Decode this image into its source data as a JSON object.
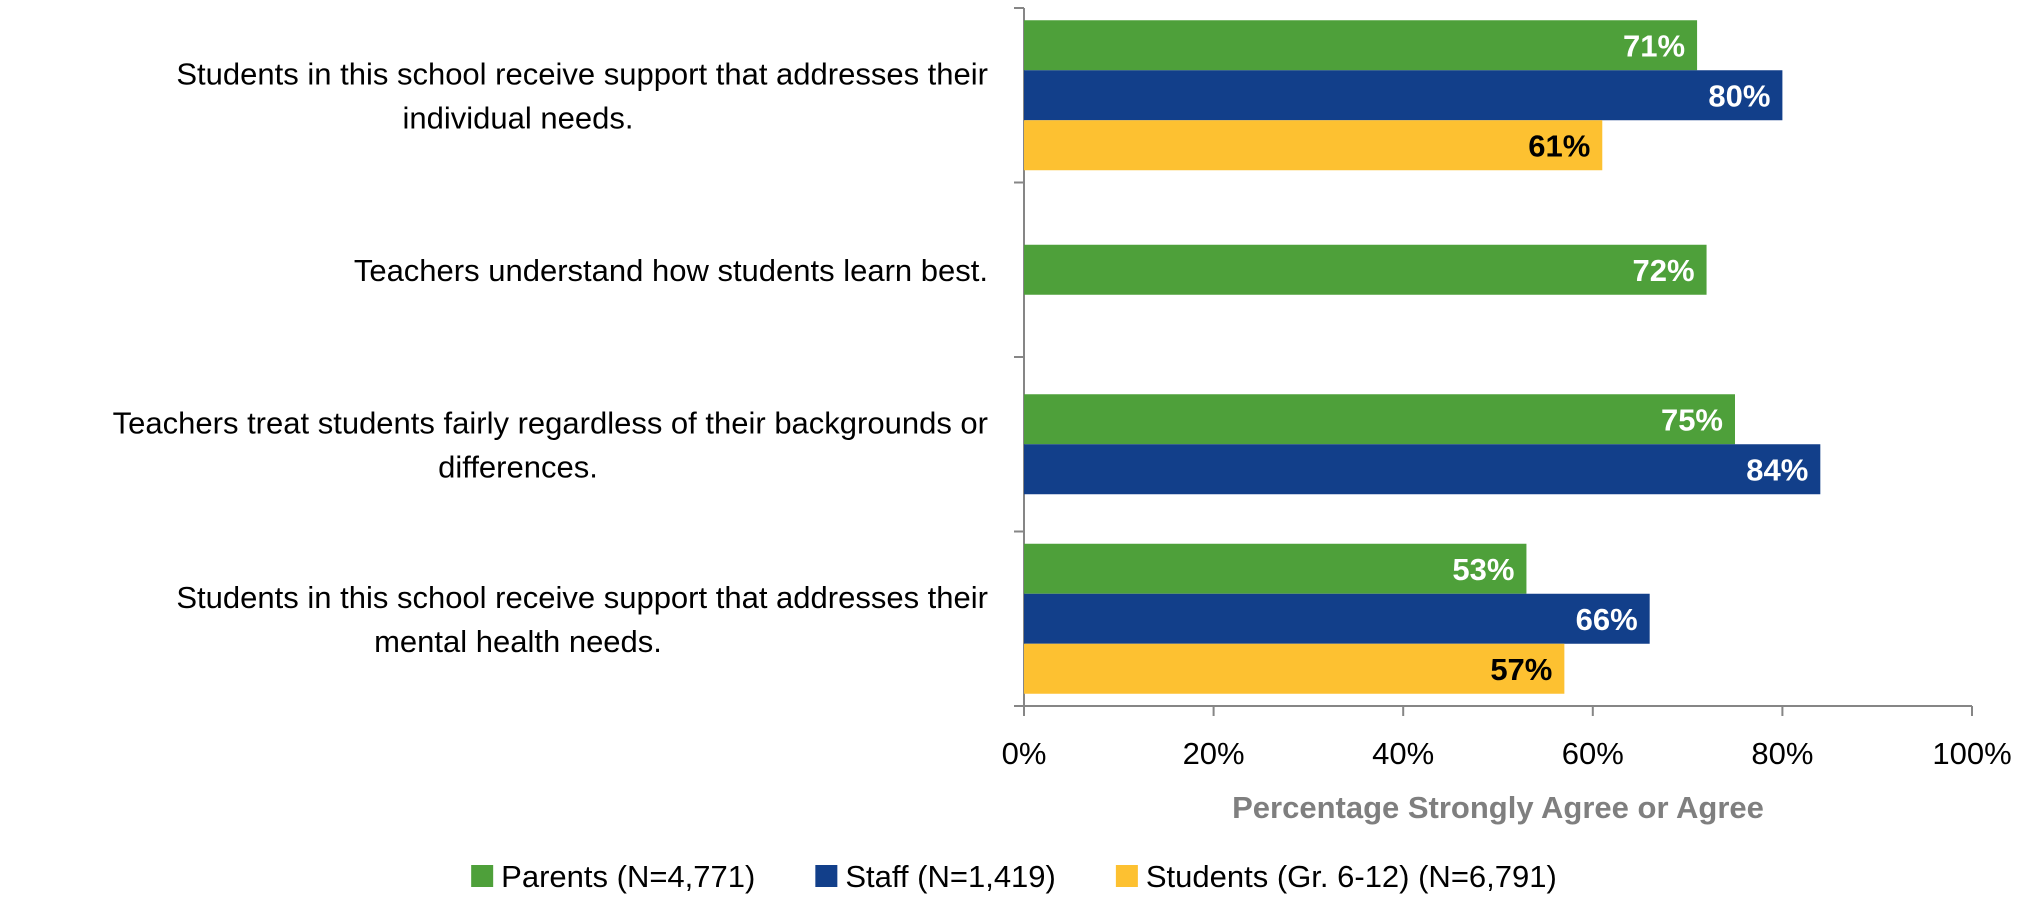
{
  "chart_data": {
    "type": "bar",
    "orientation": "horizontal",
    "categories": [
      [
        "Students in this school receive support that addresses their",
        "individual needs."
      ],
      [
        "Teachers understand how students learn best."
      ],
      [
        "Teachers treat students fairly regardless of their backgrounds or",
        "differences."
      ],
      [
        "Students in this school receive support that addresses their",
        "mental health needs."
      ]
    ],
    "series": [
      {
        "name": "Parents (N=4,771)",
        "color": "#4ea03a",
        "label_color": "#ffffff",
        "values": [
          71,
          72,
          75,
          53
        ]
      },
      {
        "name": "Staff (N=1,419)",
        "color": "#123f8a",
        "label_color": "#ffffff",
        "values": [
          80,
          null,
          84,
          66
        ]
      },
      {
        "name": "Students (Gr. 6-12) (N=6,791)",
        "color": "#fdc131",
        "label_color": "#000000",
        "values": [
          61,
          null,
          null,
          57
        ]
      }
    ],
    "xlim": [
      0,
      100
    ],
    "x_ticks": [
      0,
      20,
      40,
      60,
      80,
      100
    ],
    "tick_suffix": "%",
    "value_suffix": "%",
    "xlabel": "Percentage Strongly Agree or Agree",
    "ylabel": "",
    "title": "",
    "grid": false,
    "legend_position": "bottom"
  }
}
